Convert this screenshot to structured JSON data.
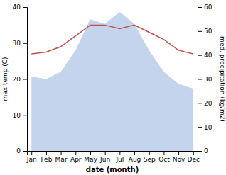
{
  "chart_data": {
    "type": "line",
    "xlabel": "date (month)",
    "ylabel": "max temp (C)",
    "y2label": "med. precipitation (kg/m2)",
    "categories": [
      "Jan",
      "Feb",
      "Mar",
      "Apr",
      "May",
      "Jun",
      "Jul",
      "Aug",
      "Sep",
      "Oct",
      "Nov",
      "Dec"
    ],
    "series": [
      {
        "type": "area",
        "axis": "y2",
        "color": "#c5d4ed",
        "values": [
          31,
          30,
          33,
          42,
          55,
          53,
          58,
          53,
          42,
          33,
          28,
          26
        ]
      },
      {
        "type": "line",
        "color": "#c0504d",
        "values": [
          27,
          27.5,
          29,
          32,
          35,
          35,
          34,
          35,
          33,
          31,
          28,
          27
        ]
      }
    ],
    "ylim": [
      0,
      40
    ],
    "yticks": [
      0,
      10,
      20,
      30,
      40
    ],
    "y2lim": [
      0,
      60
    ],
    "y2ticks": [
      0,
      10,
      20,
      30,
      40,
      50,
      60
    ],
    "grid": false
  }
}
